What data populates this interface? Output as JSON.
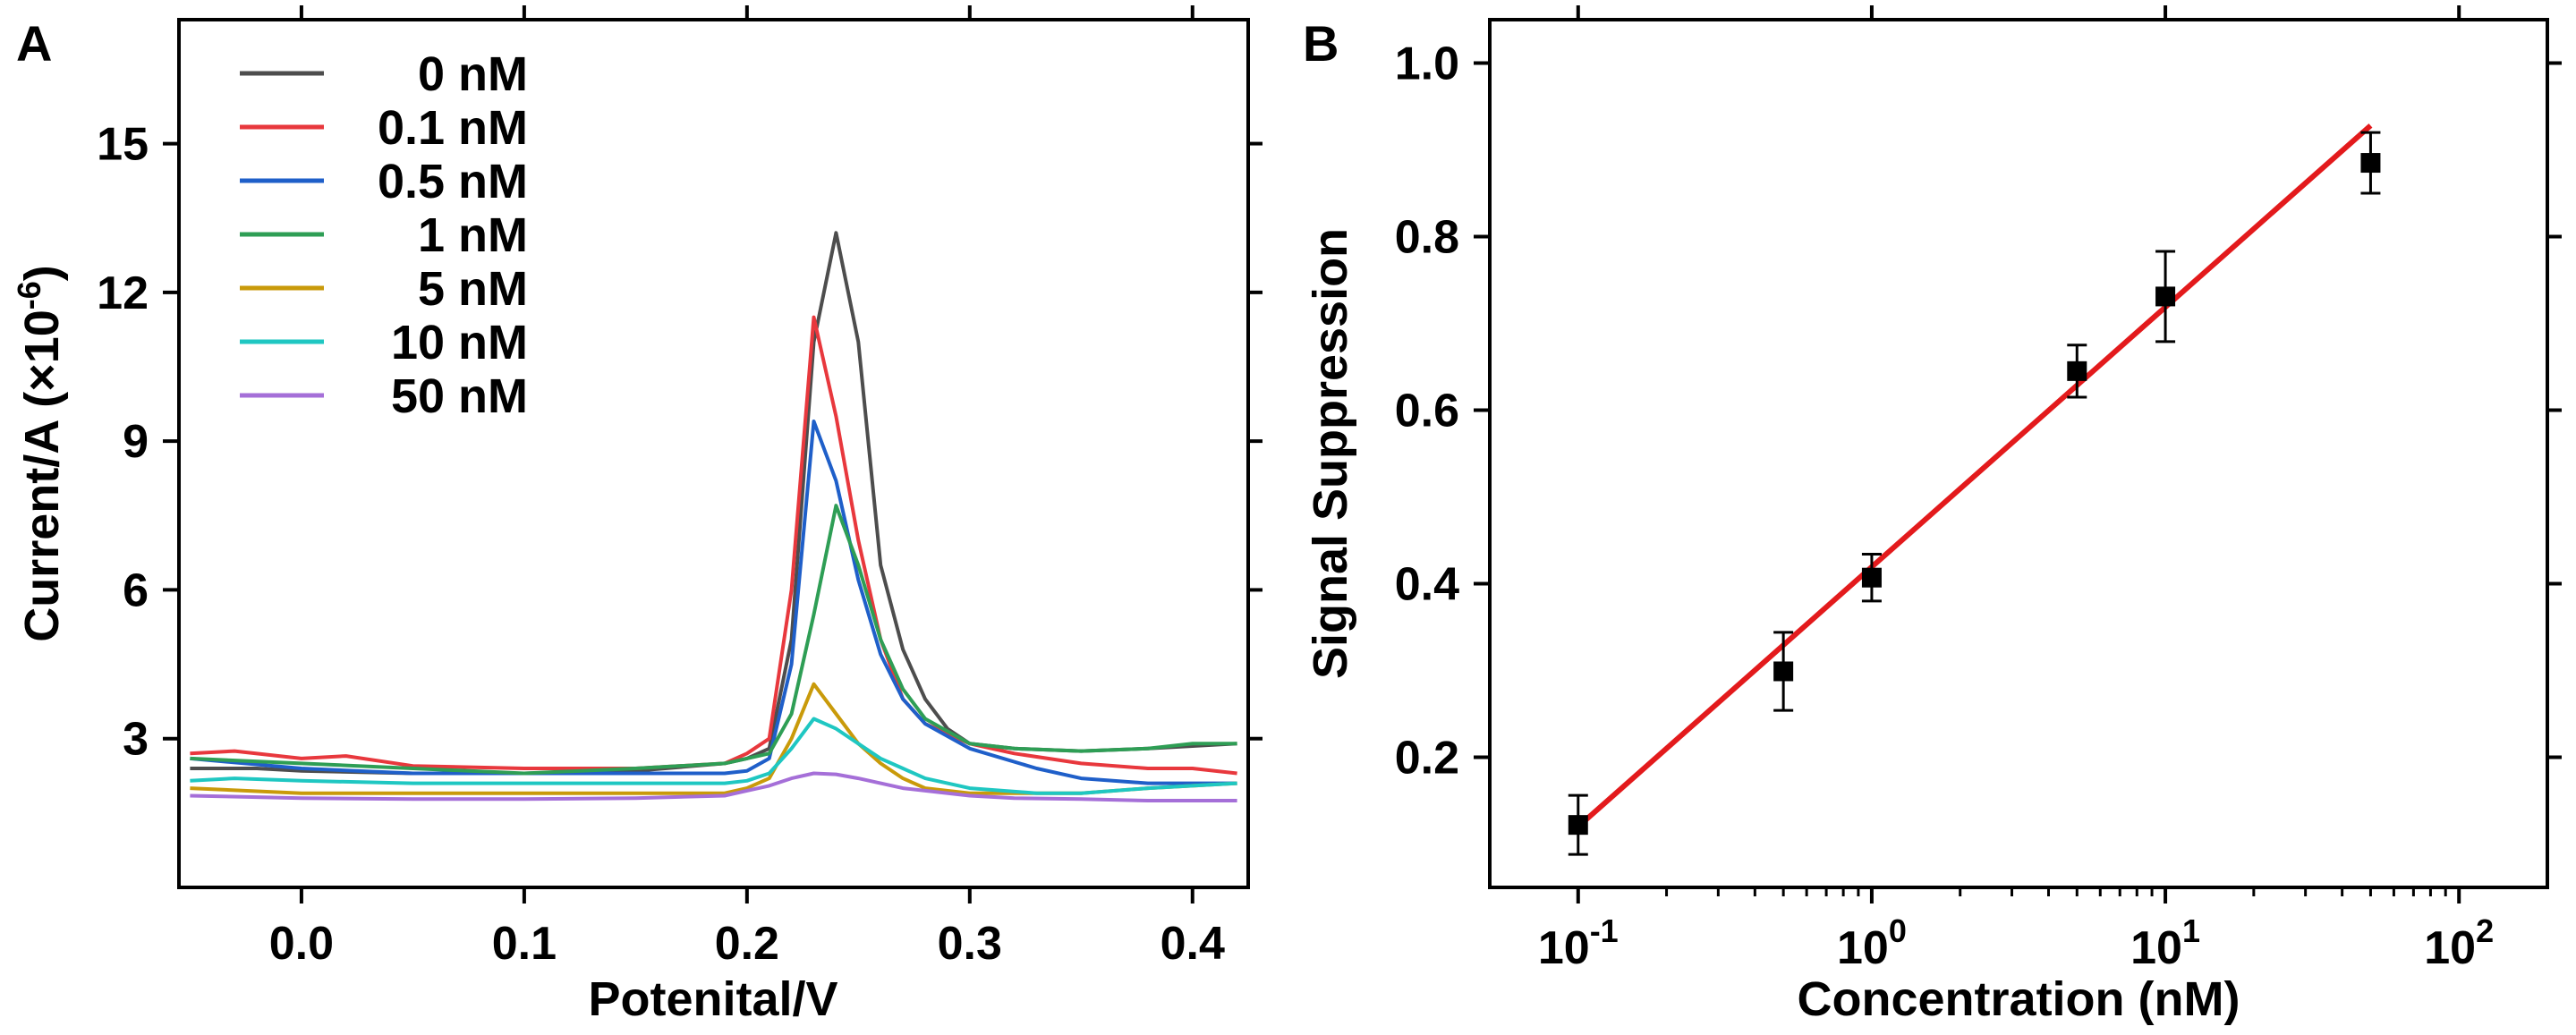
{
  "chart_data": [
    {
      "panel": "A",
      "type": "line",
      "xlabel": "Potenital/V",
      "ylabel": "Current/A (×10",
      "ylabel_exp": "-6",
      "ylabel_close": ")",
      "xlim": [
        -0.055,
        0.425
      ],
      "ylim": [
        0,
        17.5
      ],
      "xticks": [
        0.0,
        0.1,
        0.2,
        0.3,
        0.4
      ],
      "xtick_labels": [
        "0.0",
        "0.1",
        "0.2",
        "0.3",
        "0.4"
      ],
      "yticks": [
        3,
        6,
        9,
        12,
        15
      ],
      "ytick_labels": [
        "3",
        "6",
        "9",
        "12",
        "15"
      ],
      "legend_position": "top-left",
      "series": [
        {
          "name": "0 nM",
          "color": "#4d4d4d",
          "x": [
            -0.05,
            -0.02,
            0.0,
            0.05,
            0.1,
            0.15,
            0.19,
            0.2,
            0.21,
            0.22,
            0.23,
            0.24,
            0.25,
            0.26,
            0.27,
            0.28,
            0.29,
            0.3,
            0.32,
            0.35,
            0.38,
            0.4,
            0.42
          ],
          "y": [
            2.4,
            2.4,
            2.35,
            2.3,
            2.3,
            2.35,
            2.5,
            2.6,
            2.8,
            5.0,
            11.0,
            13.2,
            11.0,
            6.5,
            4.8,
            3.8,
            3.2,
            2.9,
            2.8,
            2.75,
            2.8,
            2.85,
            2.9
          ]
        },
        {
          "name": "0.1 nM",
          "color": "#e8383d",
          "x": [
            -0.05,
            -0.03,
            0.0,
            0.02,
            0.05,
            0.1,
            0.15,
            0.19,
            0.2,
            0.21,
            0.22,
            0.23,
            0.24,
            0.25,
            0.26,
            0.27,
            0.28,
            0.3,
            0.32,
            0.35,
            0.38,
            0.4,
            0.42
          ],
          "y": [
            2.7,
            2.75,
            2.6,
            2.65,
            2.45,
            2.4,
            2.4,
            2.5,
            2.7,
            3.0,
            6.0,
            11.5,
            9.5,
            7.0,
            5.0,
            3.8,
            3.3,
            2.9,
            2.7,
            2.5,
            2.4,
            2.4,
            2.3
          ]
        },
        {
          "name": "0.5 nM",
          "color": "#1f5fc9",
          "x": [
            -0.05,
            0.0,
            0.05,
            0.1,
            0.15,
            0.19,
            0.2,
            0.21,
            0.22,
            0.23,
            0.24,
            0.25,
            0.26,
            0.27,
            0.28,
            0.3,
            0.33,
            0.35,
            0.38,
            0.4,
            0.42
          ],
          "y": [
            2.6,
            2.4,
            2.3,
            2.3,
            2.3,
            2.3,
            2.35,
            2.6,
            4.5,
            9.4,
            8.2,
            6.2,
            4.7,
            3.8,
            3.3,
            2.8,
            2.4,
            2.2,
            2.1,
            2.1,
            2.1
          ]
        },
        {
          "name": "1 nM",
          "color": "#2e9e55",
          "x": [
            -0.05,
            0.0,
            0.05,
            0.1,
            0.15,
            0.19,
            0.2,
            0.21,
            0.22,
            0.23,
            0.24,
            0.25,
            0.26,
            0.27,
            0.28,
            0.3,
            0.32,
            0.35,
            0.38,
            0.4,
            0.42
          ],
          "y": [
            2.6,
            2.5,
            2.4,
            2.3,
            2.4,
            2.5,
            2.6,
            2.7,
            3.5,
            5.5,
            7.7,
            6.5,
            5.0,
            4.0,
            3.4,
            2.9,
            2.8,
            2.75,
            2.8,
            2.9,
            2.9
          ]
        },
        {
          "name": "5 nM",
          "color": "#c99a0a",
          "x": [
            -0.05,
            0.0,
            0.05,
            0.1,
            0.15,
            0.19,
            0.2,
            0.21,
            0.22,
            0.23,
            0.24,
            0.25,
            0.26,
            0.27,
            0.28,
            0.3,
            0.33,
            0.35,
            0.38,
            0.4,
            0.42
          ],
          "y": [
            2.0,
            1.9,
            1.9,
            1.9,
            1.9,
            1.9,
            2.0,
            2.2,
            3.0,
            4.1,
            3.5,
            2.9,
            2.5,
            2.2,
            2.0,
            1.9,
            1.9,
            1.9,
            2.0,
            2.05,
            2.1
          ]
        },
        {
          "name": "10 nM",
          "color": "#1fc7c2",
          "x": [
            -0.05,
            -0.03,
            0.0,
            0.05,
            0.1,
            0.15,
            0.19,
            0.2,
            0.21,
            0.22,
            0.23,
            0.24,
            0.25,
            0.26,
            0.27,
            0.28,
            0.3,
            0.33,
            0.35,
            0.38,
            0.4,
            0.42
          ],
          "y": [
            2.15,
            2.2,
            2.15,
            2.1,
            2.1,
            2.1,
            2.1,
            2.15,
            2.3,
            2.8,
            3.4,
            3.2,
            2.9,
            2.6,
            2.4,
            2.2,
            2.0,
            1.9,
            1.9,
            2.0,
            2.05,
            2.1
          ]
        },
        {
          "name": "50 nM",
          "color": "#a56fd8",
          "x": [
            -0.05,
            0.0,
            0.05,
            0.1,
            0.15,
            0.19,
            0.2,
            0.21,
            0.22,
            0.23,
            0.24,
            0.25,
            0.26,
            0.27,
            0.28,
            0.3,
            0.32,
            0.35,
            0.38,
            0.4,
            0.42
          ],
          "y": [
            1.85,
            1.8,
            1.78,
            1.78,
            1.8,
            1.85,
            1.95,
            2.05,
            2.2,
            2.3,
            2.28,
            2.2,
            2.1,
            2.0,
            1.95,
            1.85,
            1.8,
            1.78,
            1.75,
            1.75,
            1.75
          ]
        }
      ]
    },
    {
      "panel": "B",
      "type": "scatter",
      "xscale": "log",
      "xlabel": "Concentration (nM)",
      "ylabel": "Signal Suppression",
      "xlim": [
        0.05,
        200
      ],
      "ylim": [
        0.05,
        1.05
      ],
      "xticks": [
        0.1,
        1,
        10,
        100
      ],
      "xtick_base": "10",
      "xtick_exponents": [
        "-1",
        "0",
        "1",
        "2"
      ],
      "yticks": [
        0.2,
        0.4,
        0.6,
        0.8,
        1.0
      ],
      "ytick_labels": [
        "0.2",
        "0.4",
        "0.6",
        "0.8",
        "1.0"
      ],
      "points": [
        {
          "x": 0.1,
          "y": 0.122,
          "err": 0.034
        },
        {
          "x": 0.5,
          "y": 0.299,
          "err": 0.045
        },
        {
          "x": 1,
          "y": 0.407,
          "err": 0.027
        },
        {
          "x": 5,
          "y": 0.645,
          "err": 0.03
        },
        {
          "x": 10,
          "y": 0.731,
          "err": 0.052
        },
        {
          "x": 50,
          "y": 0.885,
          "err": 0.035
        }
      ],
      "marker_color": "#000000",
      "fit": {
        "type": "linear-in-log",
        "color": "#e31a1c",
        "x": [
          0.1,
          50
        ],
        "y": [
          0.12,
          0.928
        ]
      }
    }
  ],
  "panel_labels": {
    "a": "A",
    "b": "B"
  }
}
